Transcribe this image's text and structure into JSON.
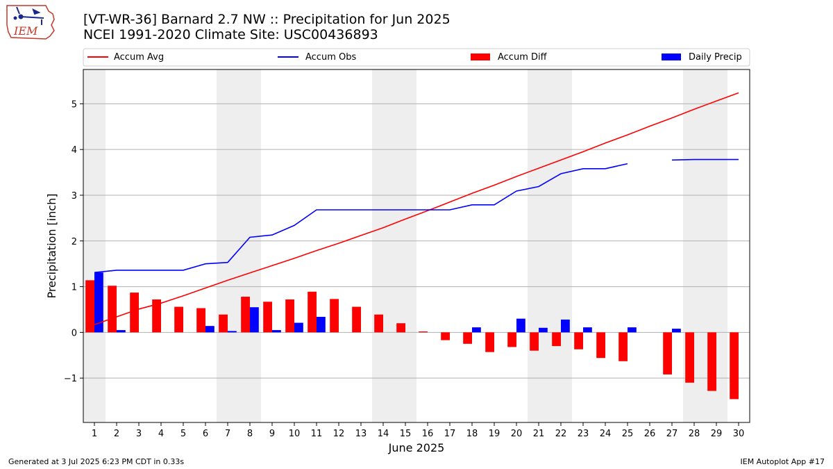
{
  "header": {
    "title_line1": "[VT-WR-36] Barnard 2.7 NW :: Precipitation for Jun 2025",
    "title_line2": "NCEI 1991-2020 Climate Site: USC00436893",
    "logo_text": "IEM"
  },
  "footer": {
    "generated": "Generated at 3 Jul 2025 6:23 PM CDT in 0.33s",
    "app": "IEM Autoplot App #17"
  },
  "colors": {
    "accum_avg": "#ff0000",
    "accum_obs": "#0000ff",
    "accum_diff": "#ff0000",
    "daily_precip": "#0000ff",
    "weekend_shade": "#eeeeee",
    "grid": "#b0b0b0"
  },
  "chart_data": {
    "type": "bar",
    "xlabel": "June 2025",
    "ylabel": "Precipitation [inch]",
    "xlim": [
      0.5,
      30.5
    ],
    "ylim": [
      -1.97,
      5.75
    ],
    "yticks": [
      -1,
      0,
      1,
      2,
      3,
      4,
      5
    ],
    "ytick_labels": [
      "−1",
      "0",
      "1",
      "2",
      "3",
      "4",
      "5"
    ],
    "grid": "y",
    "legend_position": "top",
    "x": [
      1,
      2,
      3,
      4,
      5,
      6,
      7,
      8,
      9,
      10,
      11,
      12,
      13,
      14,
      15,
      16,
      17,
      18,
      19,
      20,
      21,
      22,
      23,
      24,
      25,
      26,
      27,
      28,
      29,
      30
    ],
    "shaded_days": [
      [
        1,
        1
      ],
      [
        7,
        8
      ],
      [
        14,
        15
      ],
      [
        21,
        22
      ],
      [
        28,
        29
      ]
    ],
    "series": [
      {
        "name": "Accum Avg",
        "type": "line",
        "values": [
          0.17,
          0.34,
          0.51,
          0.64,
          0.8,
          0.97,
          1.14,
          1.3,
          1.46,
          1.62,
          1.79,
          1.95,
          2.12,
          2.29,
          2.48,
          2.66,
          2.85,
          3.04,
          3.22,
          3.41,
          3.59,
          3.77,
          3.95,
          4.14,
          4.32,
          4.51,
          4.69,
          4.88,
          5.06,
          5.24
        ]
      },
      {
        "name": "Accum Obs",
        "type": "line",
        "values": [
          1.31,
          1.36,
          1.36,
          1.36,
          1.36,
          1.5,
          1.53,
          2.08,
          2.13,
          2.34,
          2.68,
          2.68,
          2.68,
          2.68,
          2.68,
          2.68,
          2.68,
          2.79,
          2.79,
          3.09,
          3.19,
          3.47,
          3.58,
          3.58,
          3.69,
          null,
          3.77,
          3.78,
          3.78,
          3.78
        ]
      },
      {
        "name": "Accum Diff",
        "type": "bar",
        "values": [
          1.14,
          1.02,
          0.87,
          0.72,
          0.56,
          0.53,
          0.39,
          0.78,
          0.67,
          0.72,
          0.89,
          0.73,
          0.56,
          0.39,
          0.2,
          0.02,
          -0.17,
          -0.25,
          -0.43,
          -0.32,
          -0.4,
          -0.3,
          -0.37,
          -0.56,
          -0.63,
          null,
          -0.92,
          -1.1,
          -1.28,
          -1.46
        ]
      },
      {
        "name": "Daily Precip",
        "type": "bar",
        "values": [
          1.31,
          0.05,
          0,
          0,
          0,
          0.14,
          0.03,
          0.55,
          0.05,
          0.21,
          0.34,
          0,
          0,
          0,
          0,
          0,
          0,
          0.11,
          0,
          0.3,
          0.1,
          0.28,
          0.11,
          0,
          0.11,
          null,
          0.08,
          0,
          0,
          0
        ]
      }
    ]
  }
}
